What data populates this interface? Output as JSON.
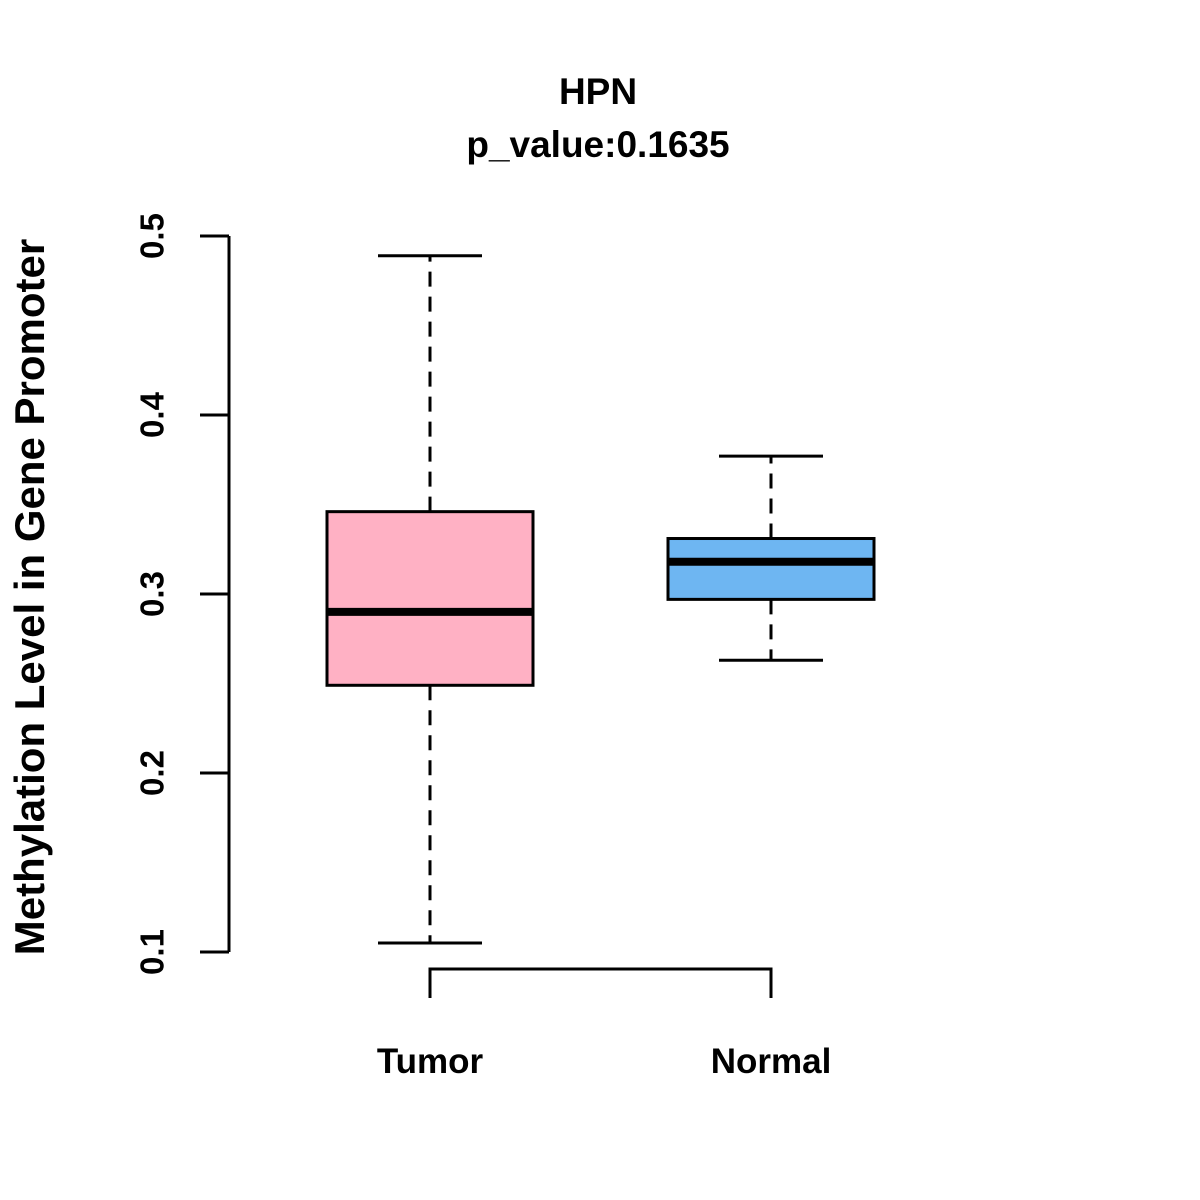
{
  "figure": {
    "title": "HPN",
    "subtitle": "p_value:0.1635",
    "ylabel": "Methylation Level in Gene Promoter",
    "background_color": "#ffffff",
    "text_color": "#000000"
  },
  "chart_data": {
    "type": "boxplot",
    "title": "HPN",
    "subtitle": "p_value:0.1635",
    "ylabel": "Methylation Level in Gene Promoter",
    "xlabel": "",
    "categories": [
      "Tumor",
      "Normal"
    ],
    "series": [
      {
        "name": "Tumor",
        "whisker_low": 0.105,
        "q1": 0.249,
        "median": 0.29,
        "q3": 0.346,
        "whisker_high": 0.489,
        "fill_color": "#FFB1C4",
        "border_color": "#000000"
      },
      {
        "name": "Normal",
        "whisker_low": 0.263,
        "q1": 0.297,
        "median": 0.318,
        "q3": 0.331,
        "whisker_high": 0.377,
        "fill_color": "#6EB6F2",
        "border_color": "#000000"
      }
    ],
    "yticks": [
      0.1,
      0.2,
      0.3,
      0.4,
      0.5
    ],
    "ytick_labels": [
      "0.1",
      "0.2",
      "0.3",
      "0.4",
      "0.5"
    ],
    "ylim": [
      0.1,
      0.5
    ],
    "grid": false,
    "legend": null,
    "axis_color": "#000000",
    "median_color": "#000000",
    "whisker_style": "dashed"
  }
}
